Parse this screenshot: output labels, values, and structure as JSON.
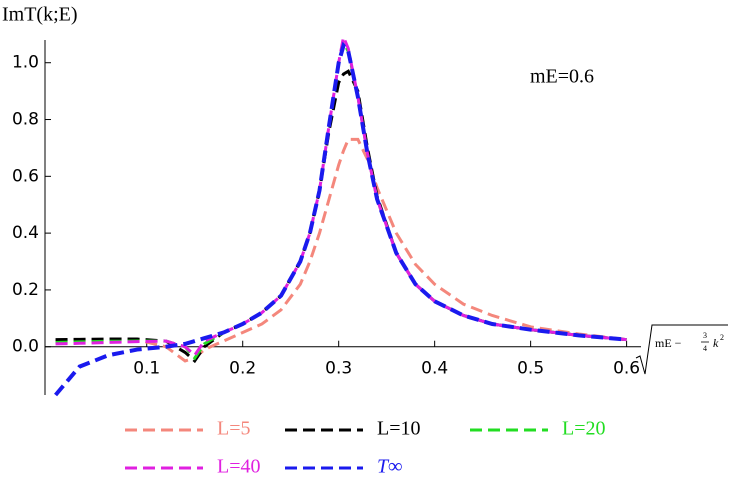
{
  "chart_data": {
    "type": "line",
    "y_label": "ImT(k;E)",
    "x_label": {
      "prefix": "mE −",
      "numerator": "3",
      "denominator": "4",
      "variable": "k",
      "exponent": "2"
    },
    "annotation": "mE=0.6",
    "x": [
      0.005,
      0.03,
      0.06,
      0.09,
      0.12,
      0.14,
      0.15,
      0.16,
      0.18,
      0.2,
      0.22,
      0.24,
      0.26,
      0.27,
      0.28,
      0.29,
      0.3,
      0.305,
      0.31,
      0.32,
      0.33,
      0.34,
      0.36,
      0.38,
      0.4,
      0.43,
      0.46,
      0.5,
      0.55,
      0.6
    ],
    "series": [
      {
        "name": "L=5",
        "color": "#f4877c",
        "values": [
          0.02,
          0.022,
          0.024,
          0.024,
          0.0,
          -0.05,
          -0.04,
          -0.01,
          0.02,
          0.05,
          0.08,
          0.13,
          0.22,
          0.3,
          0.4,
          0.52,
          0.64,
          0.69,
          0.73,
          0.73,
          0.66,
          0.56,
          0.4,
          0.29,
          0.22,
          0.15,
          0.11,
          0.07,
          0.045,
          0.025
        ]
      },
      {
        "name": "L=10",
        "color": "#000000",
        "values": [
          0.025,
          0.026,
          0.027,
          0.027,
          0.02,
          -0.02,
          -0.05,
          0.0,
          0.05,
          0.08,
          0.12,
          0.18,
          0.3,
          0.4,
          0.55,
          0.76,
          0.93,
          0.96,
          0.97,
          0.9,
          0.7,
          0.53,
          0.33,
          0.22,
          0.16,
          0.11,
          0.08,
          0.06,
          0.04,
          0.025
        ]
      },
      {
        "name": "L=20",
        "color": "#22dd22",
        "values": [
          0.015,
          0.017,
          0.019,
          0.02,
          0.02,
          0.0,
          -0.04,
          0.01,
          0.05,
          0.08,
          0.12,
          0.18,
          0.3,
          0.4,
          0.55,
          0.78,
          1.0,
          1.07,
          1.04,
          0.88,
          0.68,
          0.52,
          0.33,
          0.22,
          0.16,
          0.11,
          0.08,
          0.06,
          0.04,
          0.025
        ]
      },
      {
        "name": "L=40",
        "color": "#e020e0",
        "values": [
          0.01,
          0.012,
          0.015,
          0.018,
          0.02,
          0.0,
          -0.03,
          0.02,
          0.05,
          0.08,
          0.12,
          0.18,
          0.3,
          0.4,
          0.55,
          0.78,
          1.0,
          1.09,
          1.05,
          0.88,
          0.68,
          0.52,
          0.33,
          0.22,
          0.16,
          0.11,
          0.08,
          0.06,
          0.04,
          0.025
        ]
      },
      {
        "name": "T∞",
        "color": "#1a1aee",
        "values": [
          -0.17,
          -0.07,
          -0.03,
          -0.01,
          0.0,
          0.01,
          0.02,
          0.03,
          0.05,
          0.08,
          0.12,
          0.18,
          0.3,
          0.4,
          0.55,
          0.78,
          1.0,
          1.06,
          1.04,
          0.88,
          0.68,
          0.52,
          0.33,
          0.22,
          0.16,
          0.11,
          0.08,
          0.06,
          0.04,
          0.025
        ]
      }
    ],
    "xlim": [
      -0.006,
      0.615
    ],
    "ylim": [
      -0.17,
      1.08
    ],
    "xticks": [
      0.1,
      0.2,
      0.3,
      0.4,
      0.5,
      0.6
    ],
    "yticks": [
      {
        "value": 0,
        "label": "0.0"
      },
      0.2,
      0.4,
      0.6,
      0.8,
      {
        "value": 1,
        "label": "1.0"
      }
    ]
  }
}
